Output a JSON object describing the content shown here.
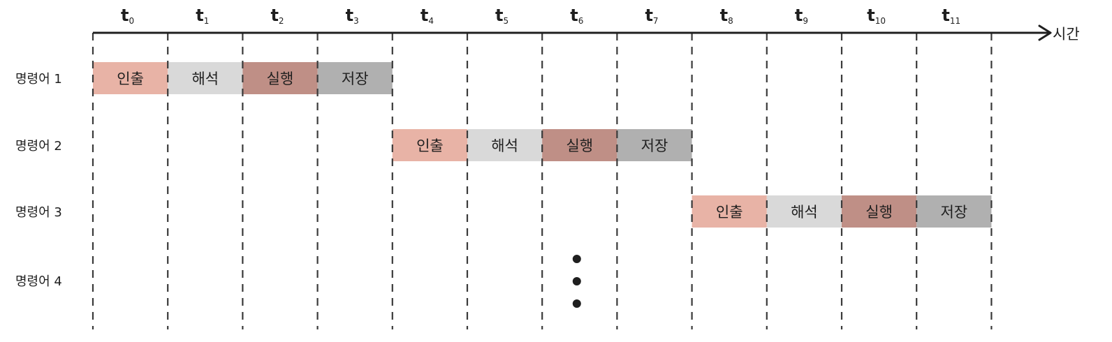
{
  "ticks": [
    {
      "base": "t",
      "sub": "0"
    },
    {
      "base": "t",
      "sub": "1"
    },
    {
      "base": "t",
      "sub": "2"
    },
    {
      "base": "t",
      "sub": "3"
    },
    {
      "base": "t",
      "sub": "4"
    },
    {
      "base": "t",
      "sub": "5"
    },
    {
      "base": "t",
      "sub": "6"
    },
    {
      "base": "t",
      "sub": "7"
    },
    {
      "base": "t",
      "sub": "8"
    },
    {
      "base": "t",
      "sub": "9"
    },
    {
      "base": "t",
      "sub": "10"
    },
    {
      "base": "t",
      "sub": "11"
    }
  ],
  "axis_label": "시간",
  "stages": [
    {
      "name": "인출",
      "color": "#e8b3a6"
    },
    {
      "name": "해석",
      "color": "#d9d9d9"
    },
    {
      "name": "실행",
      "color": "#bf8f86"
    },
    {
      "name": "저장",
      "color": "#b0b0b0"
    }
  ],
  "instructions": [
    {
      "label": "명령어 1",
      "start_slot": 0,
      "show_stages": true
    },
    {
      "label": "명령어 2",
      "start_slot": 4,
      "show_stages": true
    },
    {
      "label": "명령어 3",
      "start_slot": 8,
      "show_stages": true
    },
    {
      "label": "명령어 4",
      "start_slot": null,
      "show_stages": false
    }
  ],
  "ellipsis_slot": 6,
  "ellipsis_glyph": "⋮"
}
